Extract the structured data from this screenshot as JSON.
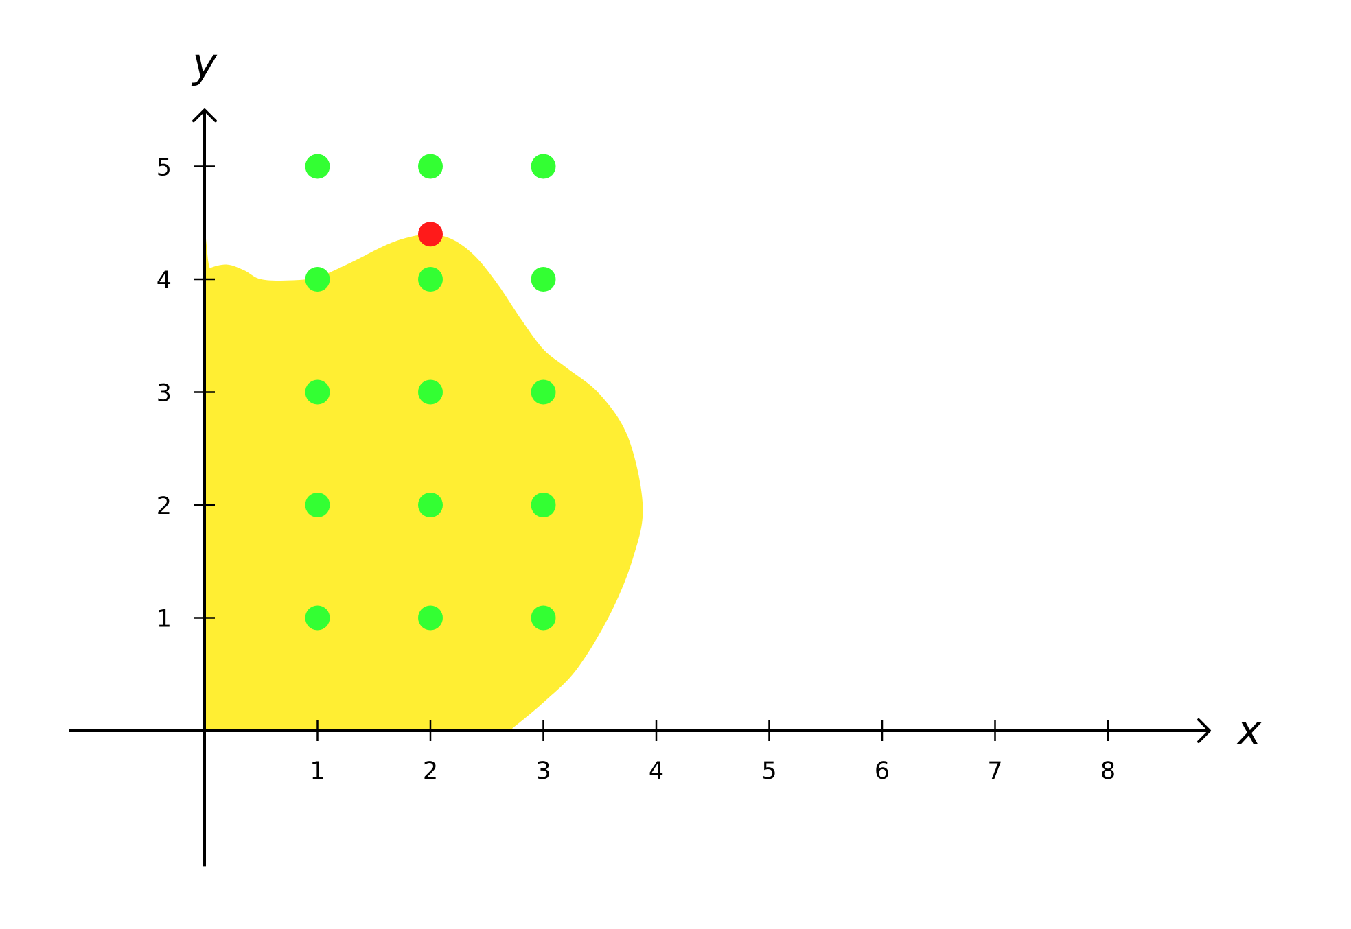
{
  "chart_data": {
    "type": "scatter",
    "title": "",
    "xlabel": "x",
    "ylabel": "y",
    "xlim": [
      -1.2,
      8.9
    ],
    "ylim": [
      -1.2,
      5.5
    ],
    "x_ticks": [
      1,
      2,
      3,
      4,
      5,
      6,
      7,
      8
    ],
    "y_ticks": [
      1,
      2,
      3,
      4,
      5
    ],
    "grid": false,
    "legend": "none",
    "region": {
      "color": "#ffee33",
      "boundary": [
        [
          0,
          0
        ],
        [
          0,
          4.05
        ],
        [
          0.05,
          4.1
        ],
        [
          0.2,
          4.13
        ],
        [
          0.35,
          4.08
        ],
        [
          0.5,
          4.0
        ],
        [
          0.75,
          3.99
        ],
        [
          1.0,
          4.02
        ],
        [
          1.3,
          4.15
        ],
        [
          1.6,
          4.3
        ],
        [
          1.8,
          4.37
        ],
        [
          2.0,
          4.4
        ],
        [
          2.2,
          4.35
        ],
        [
          2.4,
          4.2
        ],
        [
          2.6,
          3.95
        ],
        [
          2.8,
          3.65
        ],
        [
          3.0,
          3.38
        ],
        [
          3.2,
          3.22
        ],
        [
          3.5,
          2.98
        ],
        [
          3.75,
          2.6
        ],
        [
          3.88,
          2.0
        ],
        [
          3.8,
          1.55
        ],
        [
          3.6,
          1.05
        ],
        [
          3.3,
          0.55
        ],
        [
          3.0,
          0.25
        ],
        [
          2.7,
          0.0
        ]
      ]
    },
    "points": [
      {
        "x": 1,
        "y": 1,
        "color": "#33ff33"
      },
      {
        "x": 2,
        "y": 1,
        "color": "#33ff33"
      },
      {
        "x": 3,
        "y": 1,
        "color": "#33ff33"
      },
      {
        "x": 1,
        "y": 2,
        "color": "#33ff33"
      },
      {
        "x": 2,
        "y": 2,
        "color": "#33ff33"
      },
      {
        "x": 3,
        "y": 2,
        "color": "#33ff33"
      },
      {
        "x": 1,
        "y": 3,
        "color": "#33ff33"
      },
      {
        "x": 2,
        "y": 3,
        "color": "#33ff33"
      },
      {
        "x": 3,
        "y": 3,
        "color": "#33ff33"
      },
      {
        "x": 1,
        "y": 4,
        "color": "#33ff33"
      },
      {
        "x": 2,
        "y": 4,
        "color": "#33ff33"
      },
      {
        "x": 3,
        "y": 4,
        "color": "#33ff33"
      },
      {
        "x": 1,
        "y": 5,
        "color": "#33ff33"
      },
      {
        "x": 2,
        "y": 5,
        "color": "#33ff33"
      },
      {
        "x": 3,
        "y": 5,
        "color": "#33ff33"
      },
      {
        "x": 2,
        "y": 4.4,
        "color": "#ff1a1a"
      }
    ]
  }
}
